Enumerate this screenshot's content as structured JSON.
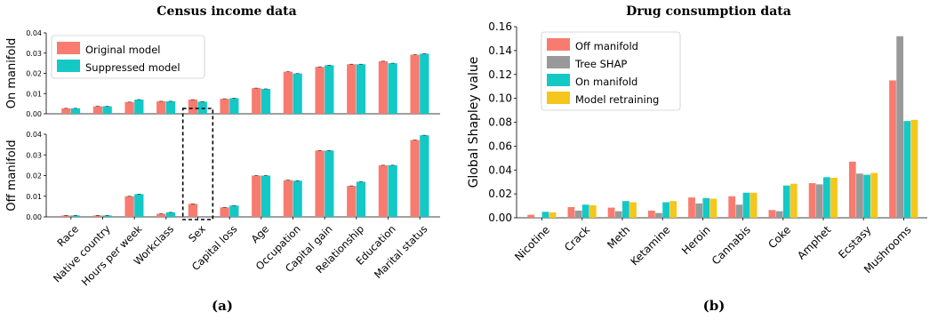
{
  "figure_a": {
    "title": "Census income data",
    "panel_label": "(a)",
    "legend": [
      "Original model",
      "Suppressed model"
    ],
    "colors": [
      "#f87b70",
      "#14c8c6"
    ],
    "highlight_category": "Sex"
  },
  "figure_b": {
    "title": "Drug consumption data",
    "panel_label": "(b)",
    "colors": [
      "#f87b70",
      "#999999",
      "#14c8c6",
      "#f5c61c"
    ]
  },
  "chart_data": [
    {
      "type": "bar",
      "title": "Census income data",
      "panel": "top",
      "ylabel": "On manifold",
      "ylim": [
        0,
        0.04
      ],
      "yticks": [
        "0.00",
        "0.01",
        "0.02",
        "0.03",
        "0.04"
      ],
      "legend_position": "top-left",
      "categories": [
        "Race",
        "Native country",
        "Hours per week",
        "Workclass",
        "Sex",
        "Capital loss",
        "Age",
        "Occupation",
        "Capital gain",
        "Relationship",
        "Education",
        "Marital status"
      ],
      "series": [
        {
          "name": "Original model",
          "values": [
            0.0027,
            0.0037,
            0.0058,
            0.0062,
            0.007,
            0.0074,
            0.0127,
            0.0208,
            0.0232,
            0.0245,
            0.026,
            0.0292
          ]
        },
        {
          "name": "Suppressed model",
          "values": [
            0.0027,
            0.0037,
            0.007,
            0.0062,
            0.006,
            0.0077,
            0.0123,
            0.0199,
            0.024,
            0.0245,
            0.025,
            0.0297
          ]
        }
      ]
    },
    {
      "type": "bar",
      "panel": "bottom",
      "ylabel": "Off manifold",
      "ylim": [
        0,
        0.04
      ],
      "yticks": [
        "0.00",
        "0.01",
        "0.02",
        "0.03",
        "0.04"
      ],
      "categories": [
        "Race",
        "Native country",
        "Hours per week",
        "Workclass",
        "Sex",
        "Capital loss",
        "Age",
        "Occupation",
        "Capital gain",
        "Relationship",
        "Education",
        "Marital status"
      ],
      "series": [
        {
          "name": "Original model",
          "values": [
            0.0007,
            0.0007,
            0.01,
            0.0015,
            0.0063,
            0.0046,
            0.02,
            0.0178,
            0.0321,
            0.015,
            0.025,
            0.0372
          ]
        },
        {
          "name": "Suppressed model",
          "values": [
            0.0007,
            0.0007,
            0.011,
            0.0022,
            0.0,
            0.0055,
            0.02,
            0.0175,
            0.0321,
            0.017,
            0.025,
            0.0395
          ]
        }
      ]
    },
    {
      "type": "bar",
      "title": "Drug consumption data",
      "ylabel": "Global Shapley value",
      "ylim": [
        0,
        0.16
      ],
      "yticks": [
        "0.00",
        "0.02",
        "0.04",
        "0.06",
        "0.08",
        "0.10",
        "0.12",
        "0.14",
        "0.16"
      ],
      "legend_position": "top-left",
      "categories": [
        "Nicotine",
        "Crack",
        "Meth",
        "Ketamine",
        "Heroin",
        "Cannabis",
        "Coke",
        "Amphet",
        "Ecstasy",
        "Mushrooms"
      ],
      "series": [
        {
          "name": "Off manifold",
          "values": [
            0.0025,
            0.009,
            0.0085,
            0.006,
            0.017,
            0.018,
            0.0065,
            0.029,
            0.047,
            0.115
          ]
        },
        {
          "name": "Tree SHAP",
          "values": [
            0.0005,
            0.006,
            0.0055,
            0.004,
            0.012,
            0.011,
            0.0055,
            0.028,
            0.037,
            0.152
          ]
        },
        {
          "name": "On manifold",
          "values": [
            0.005,
            0.011,
            0.014,
            0.013,
            0.0165,
            0.021,
            0.027,
            0.034,
            0.036,
            0.081
          ]
        },
        {
          "name": "Model retraining",
          "values": [
            0.0045,
            0.0105,
            0.013,
            0.014,
            0.016,
            0.021,
            0.0285,
            0.0335,
            0.0375,
            0.082
          ]
        }
      ]
    }
  ]
}
